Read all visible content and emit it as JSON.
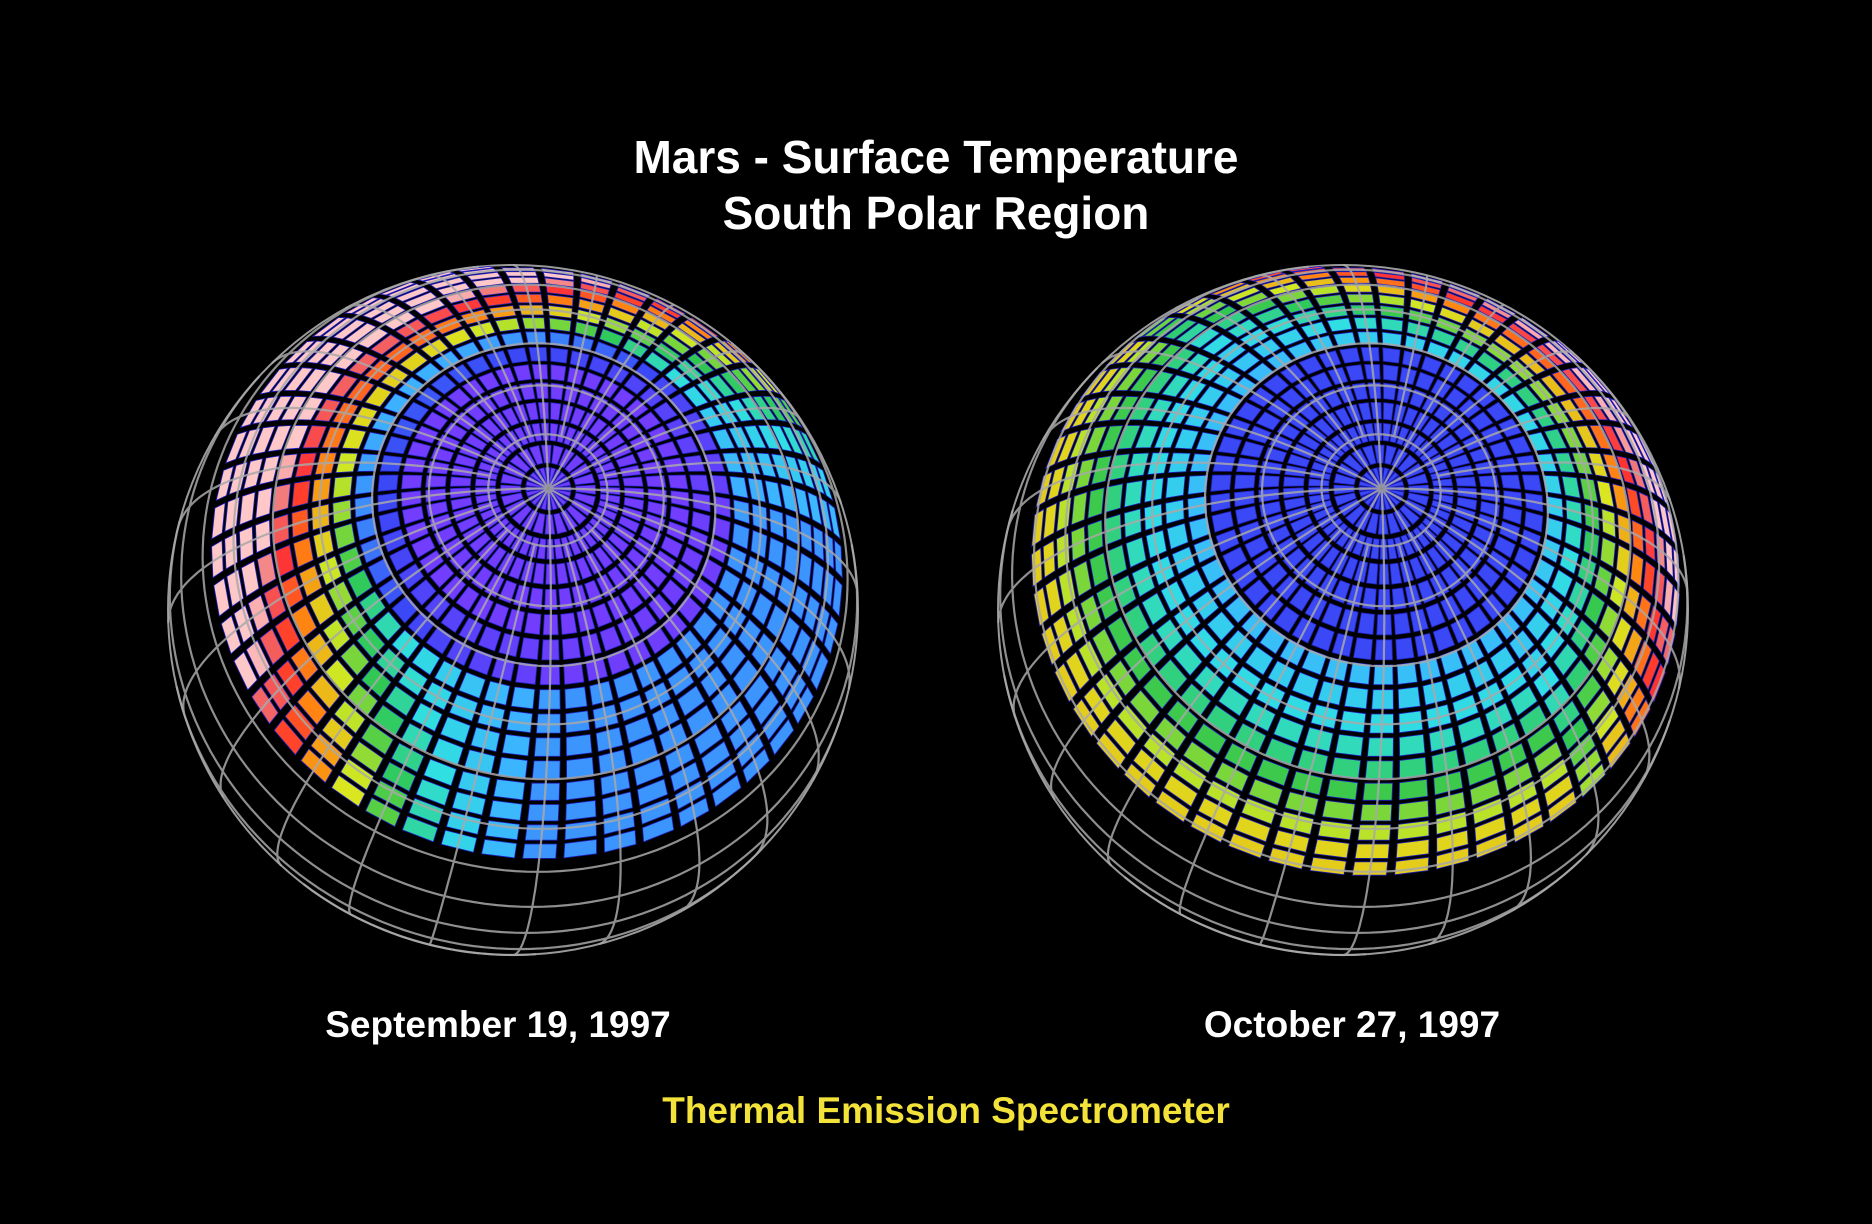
{
  "title": {
    "line1": "Mars - Surface Temperature",
    "line2": "South Polar Region"
  },
  "globes": [
    {
      "date": "September 19, 1997",
      "pole_color": "#7a3cff",
      "warm_sector": "upper-left"
    },
    {
      "date": "October 27, 1997",
      "pole_color": "#3a3cf0",
      "warm_sector": "upper-right"
    }
  ],
  "instrument": "Thermal Emission Spectrometer",
  "colors": {
    "background": "#000000",
    "grid": "#a0a0a0",
    "title": "#ffffff",
    "instrument": "#f2e23a"
  }
}
